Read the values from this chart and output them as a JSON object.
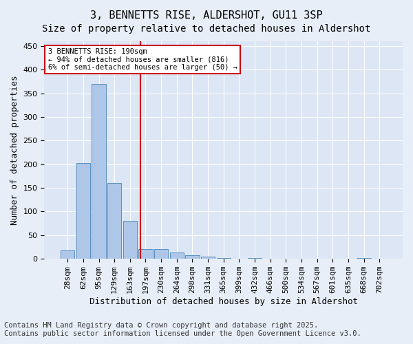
{
  "title": "3, BENNETTS RISE, ALDERSHOT, GU11 3SP",
  "subtitle": "Size of property relative to detached houses in Aldershot",
  "xlabel": "Distribution of detached houses by size in Aldershot",
  "ylabel": "Number of detached properties",
  "bar_labels": [
    "28sqm",
    "62sqm",
    "95sqm",
    "129sqm",
    "163sqm",
    "197sqm",
    "230sqm",
    "264sqm",
    "298sqm",
    "331sqm",
    "365sqm",
    "399sqm",
    "432sqm",
    "466sqm",
    "500sqm",
    "534sqm",
    "567sqm",
    "601sqm",
    "635sqm",
    "668sqm",
    "702sqm"
  ],
  "bar_values": [
    18,
    202,
    370,
    160,
    80,
    20,
    20,
    13,
    7,
    5,
    2,
    0,
    2,
    0,
    0,
    0,
    0,
    0,
    0,
    2,
    0
  ],
  "bar_color": "#aec6e8",
  "bar_edge_color": "#5a8fc0",
  "vline_x": 4.67,
  "vline_color": "#cc0000",
  "annotation_text": "3 BENNETTS RISE: 190sqm\n← 94% of detached houses are smaller (816)\n6% of semi-detached houses are larger (50) →",
  "annotation_box_color": "#cc0000",
  "annotation_text_color": "#000000",
  "ylim": [
    0,
    460
  ],
  "yticks": [
    0,
    50,
    100,
    150,
    200,
    250,
    300,
    350,
    400,
    450
  ],
  "background_color": "#e8eef7",
  "plot_background": "#dce6f5",
  "grid_color": "#ffffff",
  "title_fontsize": 11,
  "subtitle_fontsize": 10,
  "label_fontsize": 9,
  "tick_fontsize": 8,
  "footer_text": "Contains HM Land Registry data © Crown copyright and database right 2025.\nContains public sector information licensed under the Open Government Licence v3.0.",
  "footer_fontsize": 7.5
}
